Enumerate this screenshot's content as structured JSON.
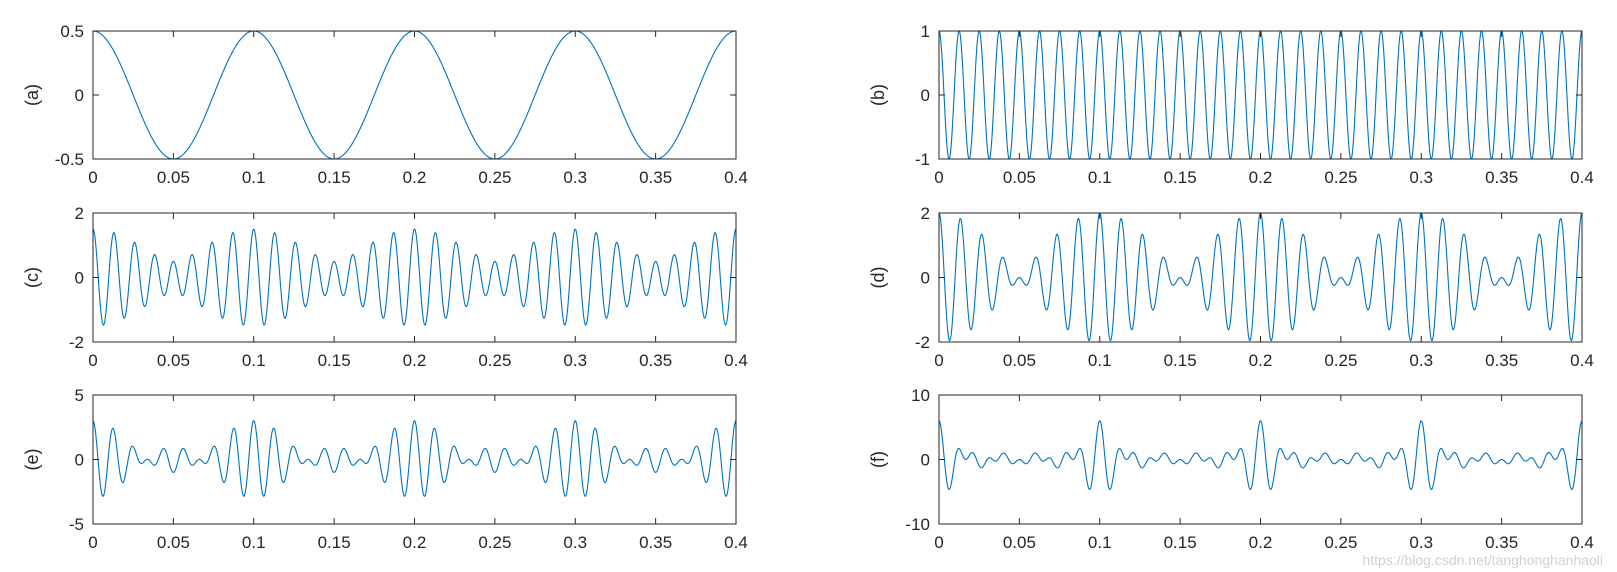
{
  "chart_data": [
    {
      "type": "line",
      "ylabel": "(a)",
      "xlim": [
        0,
        0.4
      ],
      "ylim": [
        -0.5,
        0.5
      ],
      "xticks": [
        "0",
        "0.05",
        "0.1",
        "0.15",
        "0.2",
        "0.25",
        "0.3",
        "0.35",
        "0.4"
      ],
      "yticks": [
        "-0.5",
        "0",
        "0.5"
      ],
      "series": [
        {
          "components": [
            {
              "amp": 0.5,
              "freq": 10
            }
          ]
        }
      ],
      "color": "#0072BD",
      "grid": false
    },
    {
      "type": "line",
      "ylabel": "(b)",
      "xlim": [
        0,
        0.4
      ],
      "ylim": [
        -1,
        1
      ],
      "xticks": [
        "0",
        "0.05",
        "0.1",
        "0.15",
        "0.2",
        "0.25",
        "0.3",
        "0.35",
        "0.4"
      ],
      "yticks": [
        "-1",
        "0",
        "1"
      ],
      "series": [
        {
          "components": [
            {
              "amp": 1,
              "freq": 80
            }
          ]
        }
      ],
      "color": "#0072BD",
      "grid": false
    },
    {
      "type": "line",
      "ylabel": "(c)",
      "xlim": [
        0,
        0.4
      ],
      "ylim": [
        -2,
        2
      ],
      "xticks": [
        "0",
        "0.05",
        "0.1",
        "0.15",
        "0.2",
        "0.25",
        "0.3",
        "0.35",
        "0.4"
      ],
      "yticks": [
        "-2",
        "0",
        "2"
      ],
      "series": [
        {
          "components": [
            {
              "amp": 1,
              "freq": 80
            },
            {
              "amp": 0.5,
              "freq": 70
            }
          ]
        }
      ],
      "color": "#0072BD",
      "grid": false
    },
    {
      "type": "line",
      "ylabel": "(d)",
      "xlim": [
        0,
        0.4
      ],
      "ylim": [
        -2,
        2
      ],
      "xticks": [
        "0",
        "0.05",
        "0.1",
        "0.15",
        "0.2",
        "0.25",
        "0.3",
        "0.35",
        "0.4"
      ],
      "yticks": [
        "-2",
        "0",
        "2"
      ],
      "series": [
        {
          "components": [
            {
              "amp": 1,
              "freq": 80
            },
            {
              "amp": 1,
              "freq": 70
            }
          ]
        }
      ],
      "color": "#0072BD",
      "grid": false
    },
    {
      "type": "line",
      "ylabel": "(e)",
      "xlim": [
        0,
        0.4
      ],
      "ylim": [
        -5,
        5
      ],
      "xticks": [
        "0",
        "0.05",
        "0.1",
        "0.15",
        "0.2",
        "0.25",
        "0.3",
        "0.35",
        "0.4"
      ],
      "yticks": [
        "-5",
        "0",
        "5"
      ],
      "series": [
        {
          "components": [
            {
              "amp": 1,
              "freq": 80
            },
            {
              "amp": 1,
              "freq": 70
            },
            {
              "amp": 1,
              "freq": 90
            }
          ]
        }
      ],
      "color": "#0072BD",
      "grid": false
    },
    {
      "type": "line",
      "ylabel": "(f)",
      "xlim": [
        0,
        0.4
      ],
      "ylim": [
        -10,
        10
      ],
      "xticks": [
        "0",
        "0.05",
        "0.1",
        "0.15",
        "0.2",
        "0.25",
        "0.3",
        "0.35",
        "0.4"
      ],
      "yticks": [
        "-10",
        "0",
        "10"
      ],
      "series": [
        {
          "components": [
            {
              "amp": 1,
              "freq": 80
            },
            {
              "amp": 1,
              "freq": 70
            },
            {
              "amp": 1,
              "freq": 90
            },
            {
              "amp": 1,
              "freq": 60
            },
            {
              "amp": 1,
              "freq": 100
            },
            {
              "amp": 1,
              "freq": 50
            }
          ]
        }
      ],
      "color": "#0072BD",
      "grid": false
    }
  ],
  "watermark": "https://blog.csdn.net/tanghonghanhaoli"
}
